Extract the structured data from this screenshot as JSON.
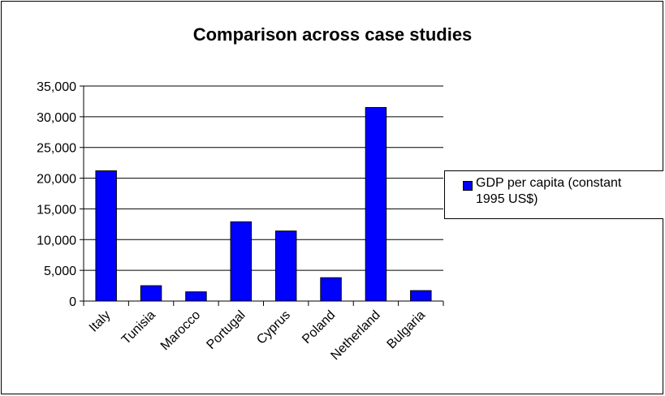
{
  "chart_data": {
    "type": "bar",
    "title": "Comparison across case studies",
    "categories": [
      "Italy",
      "Tunisia",
      "Marocco",
      "Portugal",
      "Cyprus",
      "Poland",
      "Netherland",
      "Bulgaria"
    ],
    "series": [
      {
        "name": "GDP per capita (constant 1995 US$)",
        "values": [
          21200,
          2500,
          1500,
          12900,
          11400,
          3800,
          31500,
          1700
        ],
        "color": "#0000ff"
      }
    ],
    "ylim": [
      0,
      35000
    ],
    "yticks": [
      0,
      5000,
      10000,
      15000,
      20000,
      25000,
      30000,
      35000
    ],
    "ytick_labels": [
      "0",
      "5,000",
      "10,000",
      "15,000",
      "20,000",
      "25,000",
      "30,000",
      "35,000"
    ],
    "legend_position": "right",
    "grid": true
  },
  "legend": {
    "label": "GDP per capita (constant\n1995 US$)"
  }
}
